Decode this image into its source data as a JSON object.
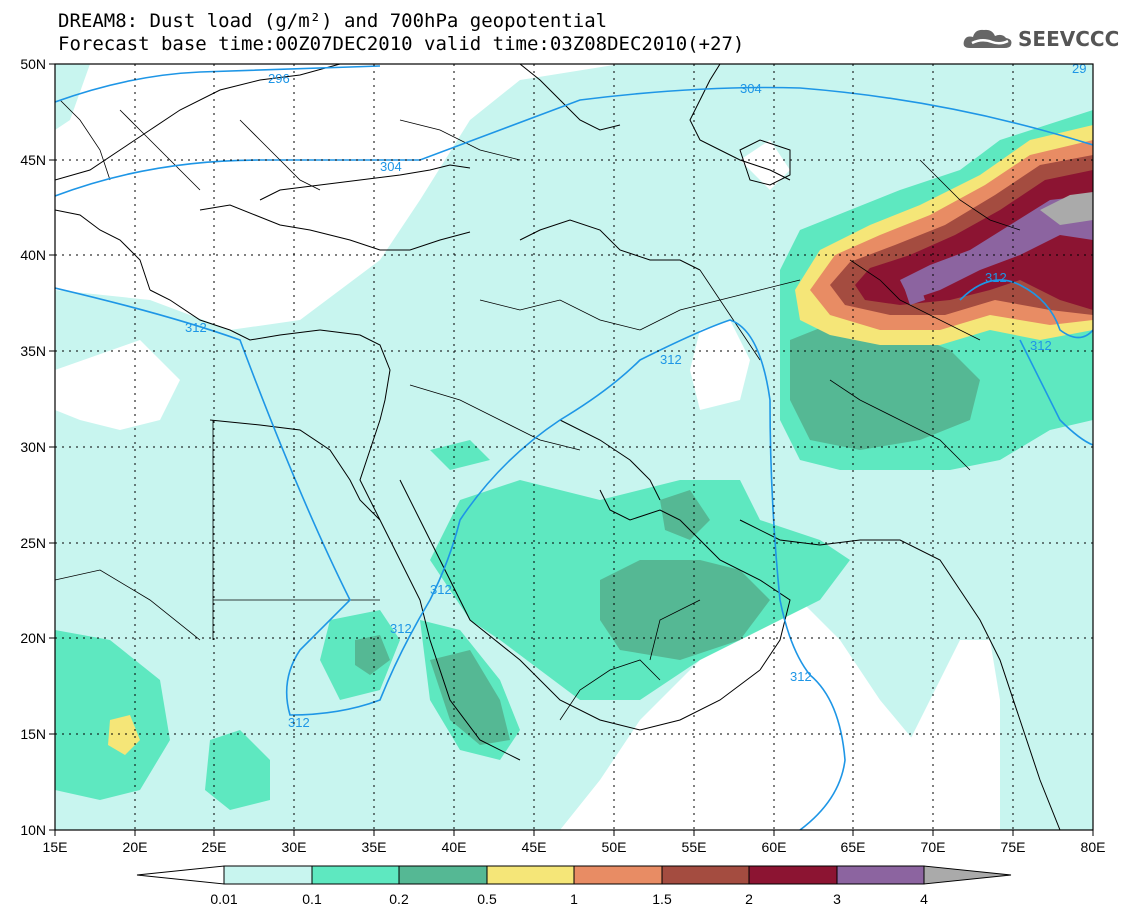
{
  "header": {
    "title_line1": "DREAM8: Dust load (g/m²) and 700hPa geopotential",
    "title_line2": "Forecast base time:00Z07DEC2010 valid time:03Z08DEC2010(+27)"
  },
  "logo": {
    "text": "SEEVCCC",
    "icon": "cloud-icon"
  },
  "map": {
    "lon_ticks": [
      "15E",
      "20E",
      "25E",
      "30E",
      "35E",
      "40E",
      "45E",
      "50E",
      "55E",
      "60E",
      "65E",
      "70E",
      "75E",
      "80E"
    ],
    "lat_ticks": [
      "50N",
      "45N",
      "40N",
      "35N",
      "30N",
      "25N",
      "20N",
      "15N",
      "10N"
    ],
    "contour_labels": [
      "296",
      "304",
      "304",
      "312",
      "312",
      "312",
      "312",
      "312",
      "312",
      "312",
      "29"
    ]
  },
  "colorbar": {
    "labels": [
      "0.01",
      "0.1",
      "0.2",
      "0.5",
      "1",
      "1.5",
      "2",
      "3",
      "4"
    ],
    "colors": {
      "c0": "#c8f5ef",
      "c1": "#5ee8c0",
      "c2": "#55b894",
      "c3": "#f5e678",
      "c4": "#e88c64",
      "c5": "#a44c40",
      "c6": "#8c1432",
      "c7": "#8c64a0",
      "c8": "#aaaaaa"
    }
  }
}
